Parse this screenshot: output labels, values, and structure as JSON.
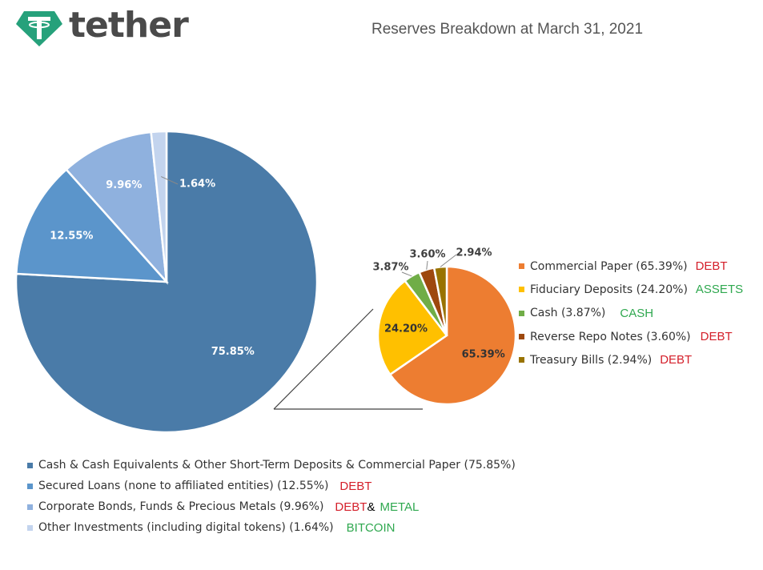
{
  "brand": {
    "name": "tether",
    "icon": "tether-logo-icon",
    "color": "#26a17b"
  },
  "title": "Reserves Breakdown at March 31, 2021",
  "chart_data": [
    {
      "type": "pie",
      "title": "",
      "categories": [
        "Cash & Cash Equivalents & Other Short-Term Deposits & Commercial Paper (75.85%)",
        "Secured Loans (none to affiliated entities) (12.55%)",
        "Corporate Bonds, Funds & Precious Metals (9.96%)",
        "Other Investments (including digital tokens) (1.64%)"
      ],
      "values": [
        75.85,
        12.55,
        9.96,
        1.64
      ],
      "data_labels": [
        "75.85%",
        "12.55%",
        "9.96%",
        "1.64%"
      ],
      "colors": [
        "#4a7ba8",
        "#5b95cb",
        "#8fb1de",
        "#c3d4ee"
      ],
      "legend_position": "bottom"
    },
    {
      "type": "pie",
      "title": "",
      "categories": [
        "Commercial Paper (65.39%)",
        "Fiduciary Deposits (24.20%)",
        "Cash (3.87%)",
        "Reverse Repo Notes (3.60%)",
        "Treasury Bills (2.94%)"
      ],
      "values": [
        65.39,
        24.2,
        3.87,
        3.6,
        2.94
      ],
      "data_labels": [
        "65.39%",
        "24.20%",
        "3.87%",
        "3.60%",
        "2.94%"
      ],
      "colors": [
        "#ed7d31",
        "#ffc000",
        "#70ad47",
        "#9e480e",
        "#997300"
      ],
      "legend_position": "right"
    }
  ],
  "annotations": {
    "small": [
      "DEBT",
      "ASSETS",
      "CASH",
      "DEBT",
      "DEBT"
    ],
    "large": [
      "",
      "DEBT",
      "DEBT",
      "BITCOIN"
    ],
    "large_extra": [
      "",
      "",
      "METAL",
      ""
    ],
    "ampersand": "&"
  }
}
